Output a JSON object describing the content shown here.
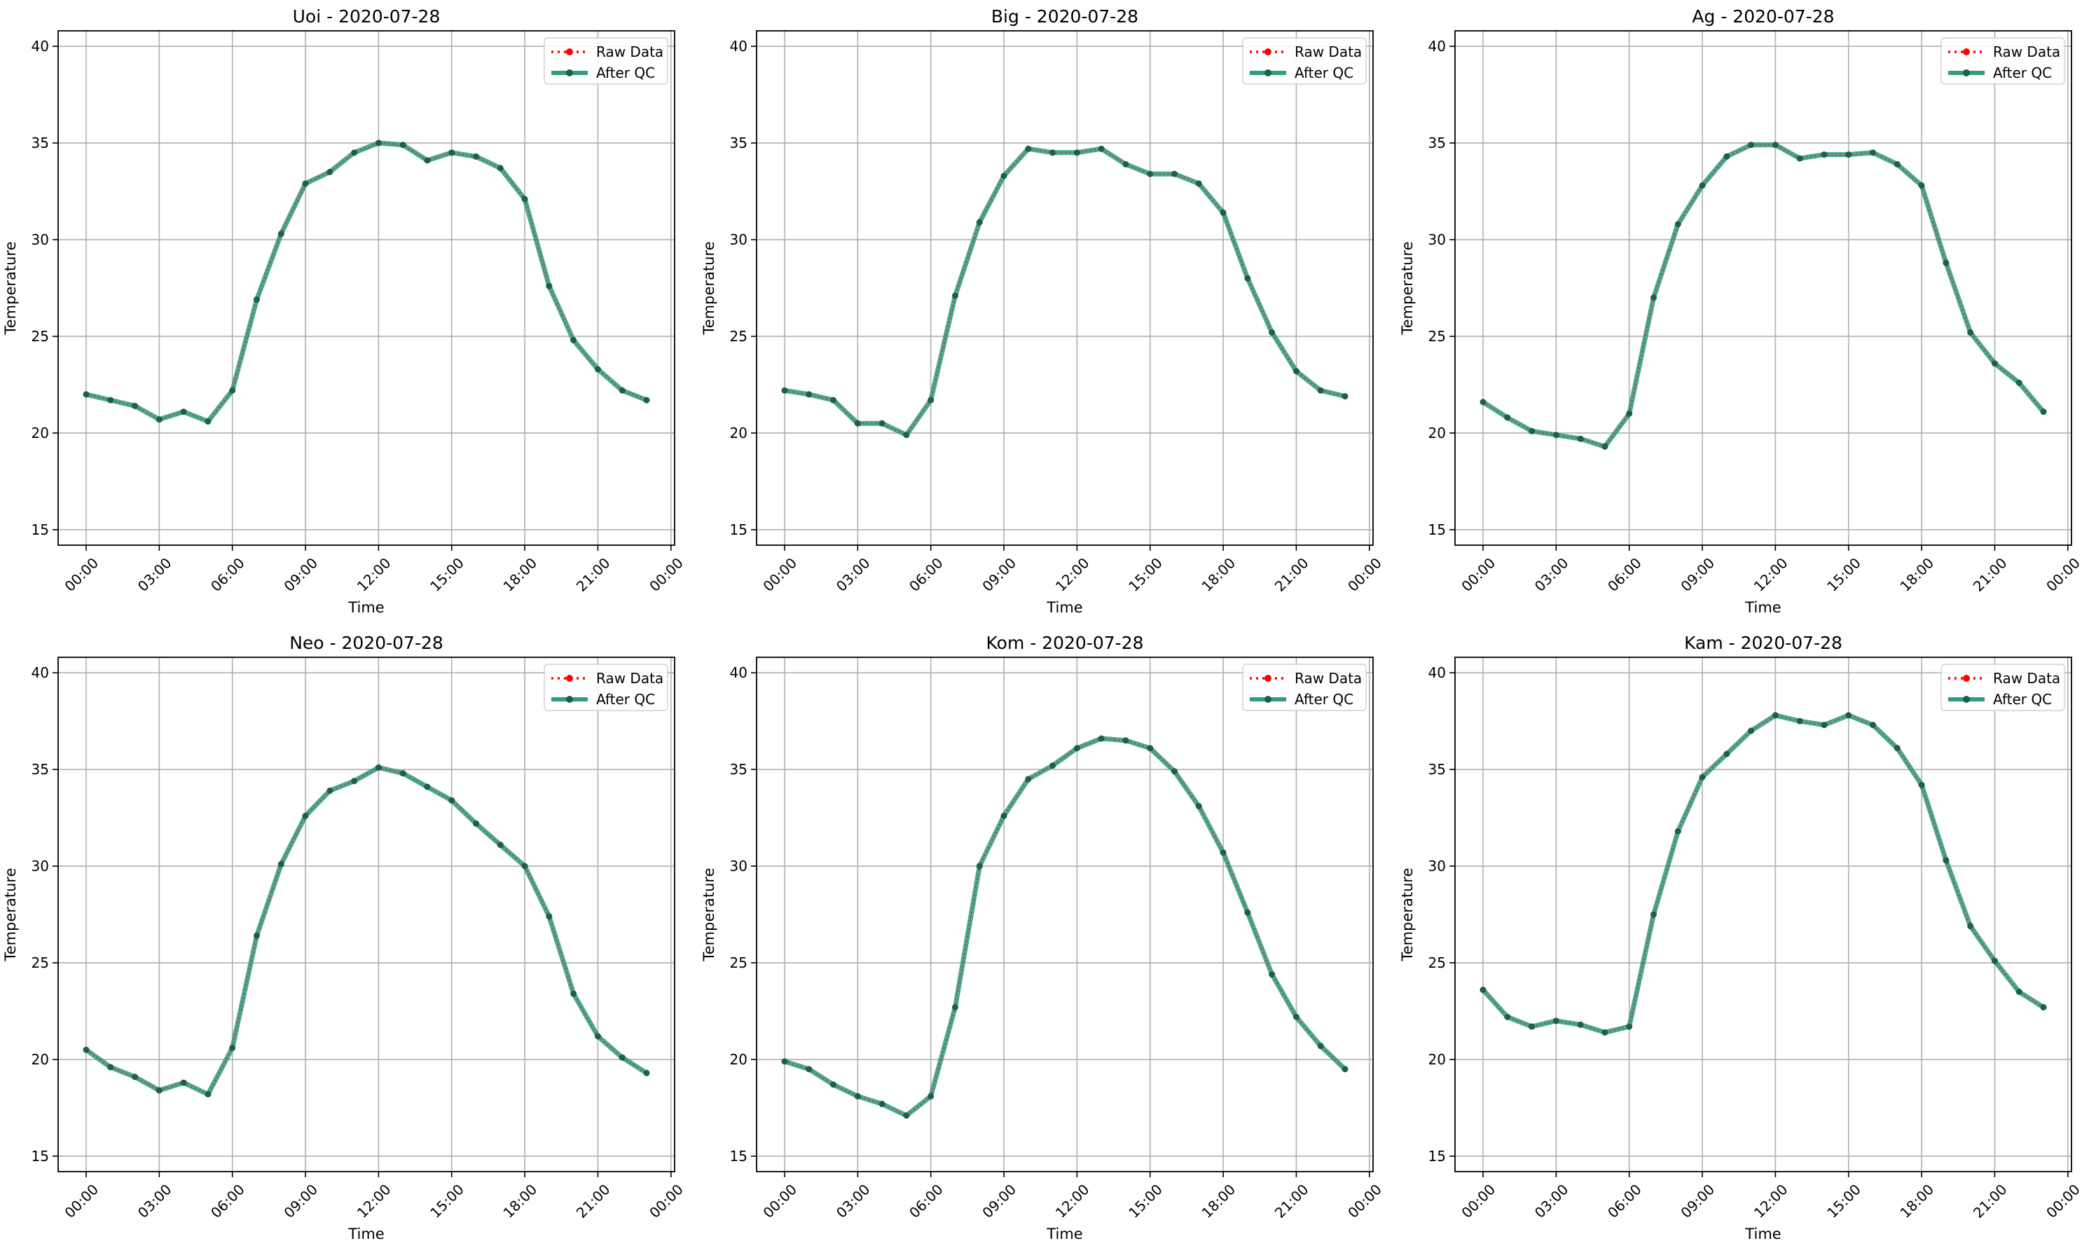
{
  "colors": {
    "raw": "#ff0000",
    "qc": "#2e9e7e",
    "qc_marker": "#1f5e4c",
    "grid": "#b0b0b0",
    "axes": "#000000"
  },
  "legend_labels": {
    "raw": "Raw Data",
    "qc": "After QC"
  },
  "chart_data": [
    {
      "type": "line",
      "title": "Uoi - 2020-07-28",
      "xlabel": "Time",
      "ylabel": "Temperature",
      "ylim": [
        14.2,
        40.8
      ],
      "xlim": [
        -1.15,
        24.15
      ],
      "yticks": [
        15,
        20,
        25,
        30,
        35,
        40
      ],
      "xticks": [
        "00:00",
        "03:00",
        "06:00",
        "09:00",
        "12:00",
        "15:00",
        "18:00",
        "21:00",
        "00:00"
      ],
      "grid": true,
      "legend_position": "top-right",
      "x_hours": [
        0,
        1,
        2,
        3,
        4,
        5,
        6,
        7,
        8,
        9,
        10,
        11,
        12,
        13,
        14,
        15,
        16,
        17,
        18,
        19,
        20,
        21,
        22,
        23
      ],
      "series": [
        {
          "name": "Raw Data",
          "values": [
            22.0,
            21.7,
            21.4,
            20.7,
            21.1,
            20.6,
            22.2,
            26.9,
            30.3,
            32.9,
            33.5,
            34.5,
            35.0,
            34.9,
            34.1,
            34.5,
            34.3,
            33.7,
            32.1,
            27.6,
            24.8,
            23.3,
            22.2,
            21.7
          ]
        },
        {
          "name": "After QC",
          "values": [
            22.0,
            21.7,
            21.4,
            20.7,
            21.1,
            20.6,
            22.2,
            26.9,
            30.3,
            32.9,
            33.5,
            34.5,
            35.0,
            34.9,
            34.1,
            34.5,
            34.3,
            33.7,
            32.1,
            27.6,
            24.8,
            23.3,
            22.2,
            21.7
          ]
        }
      ]
    },
    {
      "type": "line",
      "title": "Big - 2020-07-28",
      "xlabel": "Time",
      "ylabel": "Temperature",
      "ylim": [
        14.2,
        40.8
      ],
      "xlim": [
        -1.15,
        24.15
      ],
      "yticks": [
        15,
        20,
        25,
        30,
        35,
        40
      ],
      "xticks": [
        "00:00",
        "03:00",
        "06:00",
        "09:00",
        "12:00",
        "15:00",
        "18:00",
        "21:00",
        "00:00"
      ],
      "grid": true,
      "legend_position": "top-right",
      "x_hours": [
        0,
        1,
        2,
        3,
        4,
        5,
        6,
        7,
        8,
        9,
        10,
        11,
        12,
        13,
        14,
        15,
        16,
        17,
        18,
        19,
        20,
        21,
        22,
        23
      ],
      "series": [
        {
          "name": "Raw Data",
          "values": [
            22.2,
            22.0,
            21.7,
            20.5,
            20.5,
            19.9,
            21.7,
            27.1,
            30.9,
            33.3,
            34.7,
            34.5,
            34.5,
            34.7,
            33.9,
            33.4,
            33.4,
            32.9,
            31.4,
            28.0,
            25.2,
            23.2,
            22.2,
            21.9
          ]
        },
        {
          "name": "After QC",
          "values": [
            22.2,
            22.0,
            21.7,
            20.5,
            20.5,
            19.9,
            21.7,
            27.1,
            30.9,
            33.3,
            34.7,
            34.5,
            34.5,
            34.7,
            33.9,
            33.4,
            33.4,
            32.9,
            31.4,
            28.0,
            25.2,
            23.2,
            22.2,
            21.9
          ]
        }
      ]
    },
    {
      "type": "line",
      "title": "Ag - 2020-07-28",
      "xlabel": "Time",
      "ylabel": "Temperature",
      "ylim": [
        14.2,
        40.8
      ],
      "xlim": [
        -1.15,
        24.15
      ],
      "yticks": [
        15,
        20,
        25,
        30,
        35,
        40
      ],
      "xticks": [
        "00:00",
        "03:00",
        "06:00",
        "09:00",
        "12:00",
        "15:00",
        "18:00",
        "21:00",
        "00:00"
      ],
      "grid": true,
      "legend_position": "top-right",
      "x_hours": [
        0,
        1,
        2,
        3,
        4,
        5,
        6,
        7,
        8,
        9,
        10,
        11,
        12,
        13,
        14,
        15,
        16,
        17,
        18,
        19,
        20,
        21,
        22,
        23
      ],
      "series": [
        {
          "name": "Raw Data",
          "values": [
            21.6,
            20.8,
            20.1,
            19.9,
            19.7,
            19.3,
            21.0,
            27.0,
            30.8,
            32.8,
            34.3,
            34.9,
            34.9,
            34.2,
            34.4,
            34.4,
            34.5,
            33.9,
            32.8,
            28.8,
            25.2,
            23.6,
            22.6,
            21.1
          ]
        },
        {
          "name": "After QC",
          "values": [
            21.6,
            20.8,
            20.1,
            19.9,
            19.7,
            19.3,
            21.0,
            27.0,
            30.8,
            32.8,
            34.3,
            34.9,
            34.9,
            34.2,
            34.4,
            34.4,
            34.5,
            33.9,
            32.8,
            28.8,
            25.2,
            23.6,
            22.6,
            21.1
          ]
        }
      ]
    },
    {
      "type": "line",
      "title": "Neo - 2020-07-28",
      "xlabel": "Time",
      "ylabel": "Temperature",
      "ylim": [
        14.2,
        40.8
      ],
      "xlim": [
        -1.15,
        24.15
      ],
      "yticks": [
        15,
        20,
        25,
        30,
        35,
        40
      ],
      "xticks": [
        "00:00",
        "03:00",
        "06:00",
        "09:00",
        "12:00",
        "15:00",
        "18:00",
        "21:00",
        "00:00"
      ],
      "grid": true,
      "legend_position": "top-right",
      "x_hours": [
        0,
        1,
        2,
        3,
        4,
        5,
        6,
        7,
        8,
        9,
        10,
        11,
        12,
        13,
        14,
        15,
        16,
        17,
        18,
        19,
        20,
        21,
        22,
        23
      ],
      "series": [
        {
          "name": "Raw Data",
          "values": [
            20.5,
            19.6,
            19.1,
            18.4,
            18.8,
            18.2,
            20.6,
            26.4,
            30.1,
            32.6,
            33.9,
            34.4,
            35.1,
            34.8,
            34.1,
            33.4,
            32.2,
            31.1,
            30.0,
            27.4,
            23.4,
            21.2,
            20.1,
            19.3
          ]
        },
        {
          "name": "After QC",
          "values": [
            20.5,
            19.6,
            19.1,
            18.4,
            18.8,
            18.2,
            20.6,
            26.4,
            30.1,
            32.6,
            33.9,
            34.4,
            35.1,
            34.8,
            34.1,
            33.4,
            32.2,
            31.1,
            30.0,
            27.4,
            23.4,
            21.2,
            20.1,
            19.3
          ]
        }
      ]
    },
    {
      "type": "line",
      "title": "Kom - 2020-07-28",
      "xlabel": "Time",
      "ylabel": "Temperature",
      "ylim": [
        14.2,
        40.8
      ],
      "xlim": [
        -1.15,
        24.15
      ],
      "yticks": [
        15,
        20,
        25,
        30,
        35,
        40
      ],
      "xticks": [
        "00:00",
        "03:00",
        "06:00",
        "09:00",
        "12:00",
        "15:00",
        "18:00",
        "21:00",
        "00:00"
      ],
      "grid": true,
      "legend_position": "top-right",
      "x_hours": [
        0,
        1,
        2,
        3,
        4,
        5,
        6,
        7,
        8,
        9,
        10,
        11,
        12,
        13,
        14,
        15,
        16,
        17,
        18,
        19,
        20,
        21,
        22,
        23
      ],
      "series": [
        {
          "name": "Raw Data",
          "values": [
            19.9,
            19.5,
            18.7,
            18.1,
            17.7,
            17.1,
            18.1,
            22.7,
            30.0,
            32.6,
            34.5,
            35.2,
            36.1,
            36.6,
            36.5,
            36.1,
            34.9,
            33.1,
            30.7,
            27.6,
            24.4,
            22.2,
            20.7,
            19.5
          ]
        },
        {
          "name": "After QC",
          "values": [
            19.9,
            19.5,
            18.7,
            18.1,
            17.7,
            17.1,
            18.1,
            22.7,
            30.0,
            32.6,
            34.5,
            35.2,
            36.1,
            36.6,
            36.5,
            36.1,
            34.9,
            33.1,
            30.7,
            27.6,
            24.4,
            22.2,
            20.7,
            19.5
          ]
        }
      ]
    },
    {
      "type": "line",
      "title": "Kam - 2020-07-28",
      "xlabel": "Time",
      "ylabel": "Temperature",
      "ylim": [
        14.2,
        40.8
      ],
      "xlim": [
        -1.15,
        24.15
      ],
      "yticks": [
        15,
        20,
        25,
        30,
        35,
        40
      ],
      "xticks": [
        "00:00",
        "03:00",
        "06:00",
        "09:00",
        "12:00",
        "15:00",
        "18:00",
        "21:00",
        "00:00"
      ],
      "grid": true,
      "legend_position": "top-right",
      "x_hours": [
        0,
        1,
        2,
        3,
        4,
        5,
        6,
        7,
        8,
        9,
        10,
        11,
        12,
        13,
        14,
        15,
        16,
        17,
        18,
        19,
        20,
        21,
        22,
        23
      ],
      "series": [
        {
          "name": "Raw Data",
          "values": [
            23.6,
            22.2,
            21.7,
            22.0,
            21.8,
            21.4,
            21.7,
            27.5,
            31.8,
            34.6,
            35.8,
            37.0,
            37.8,
            37.5,
            37.3,
            37.8,
            37.3,
            36.1,
            34.2,
            30.3,
            26.9,
            25.1,
            23.5,
            22.7
          ]
        },
        {
          "name": "After QC",
          "values": [
            23.6,
            22.2,
            21.7,
            22.0,
            21.8,
            21.4,
            21.7,
            27.5,
            31.8,
            34.6,
            35.8,
            37.0,
            37.8,
            37.5,
            37.3,
            37.8,
            37.3,
            36.1,
            34.2,
            30.3,
            26.9,
            25.1,
            23.5,
            22.7
          ]
        }
      ]
    }
  ]
}
